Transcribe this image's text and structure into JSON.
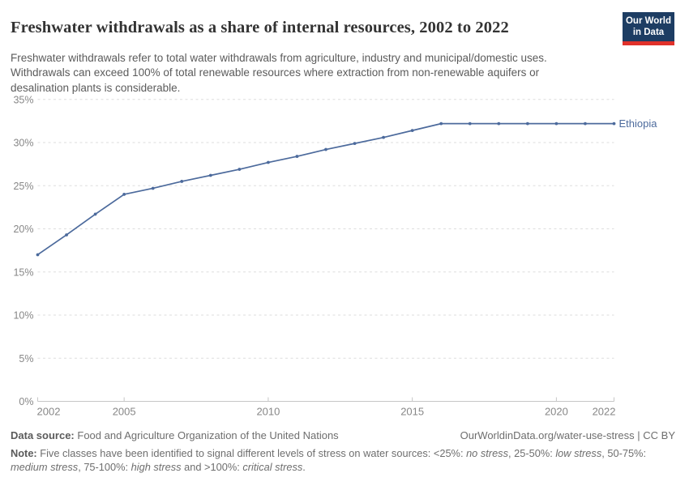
{
  "header": {
    "title": "Freshwater withdrawals as a share of internal resources, 2002 to 2022",
    "subtitle_lines": [
      "Freshwater withdrawals refer to total water withdrawals from agriculture, industry and municipal/domestic uses.",
      "Withdrawals can exceed 100% of total renewable resources where extraction from non-renewable aquifers or",
      "desalination plants is considerable."
    ],
    "logo": {
      "line1": "Our World",
      "line2": "in Data",
      "bg_color": "#1d3d63",
      "accent_color": "#e0312a"
    }
  },
  "chart_data": {
    "type": "line",
    "title": "Freshwater withdrawals as a share of internal resources, 2002 to 2022",
    "x": [
      2002,
      2003,
      2004,
      2005,
      2006,
      2007,
      2008,
      2009,
      2010,
      2011,
      2012,
      2013,
      2014,
      2015,
      2016,
      2017,
      2018,
      2019,
      2020,
      2021,
      2022
    ],
    "series": [
      {
        "name": "Ethiopia",
        "color": "#4C6A9C",
        "values": [
          17.0,
          19.3,
          21.7,
          24.0,
          24.7,
          25.5,
          26.2,
          26.9,
          27.7,
          28.4,
          29.2,
          29.9,
          30.6,
          31.4,
          32.2,
          32.2,
          32.2,
          32.2,
          32.2,
          32.2,
          32.2
        ]
      }
    ],
    "xlabel": "",
    "ylabel": "",
    "xlim": [
      2002,
      2022
    ],
    "ylim": [
      0,
      35
    ],
    "x_ticks": [
      2002,
      2005,
      2010,
      2015,
      2020,
      2022
    ],
    "y_ticks": [
      0,
      5,
      10,
      15,
      20,
      25,
      30,
      35
    ],
    "y_suffix": "%",
    "grid": "horizontal-dashed",
    "legend": "end-of-line-label",
    "colors": {
      "grid": "#dedede",
      "axis": "#c6c6c6",
      "tick_label": "#878787"
    }
  },
  "footer": {
    "source_label": "Data source:",
    "source_value": "Food and Agriculture Organization of the United Nations",
    "link": "OurWorldinData.org/water-use-stress | CC BY",
    "note_segments": [
      {
        "t": "Note: ",
        "b": 1
      },
      {
        "t": "Five classes have been identified to signal different levels of stress on water sources: <25%: "
      },
      {
        "t": "no stress",
        "i": 1
      },
      {
        "t": ", 25-50%: "
      },
      {
        "t": "low stress",
        "i": 1
      },
      {
        "t": ", 50-75%:"
      },
      {
        "br": 1
      },
      {
        "t": "medium stress",
        "i": 1
      },
      {
        "t": ", 75-100%: "
      },
      {
        "t": "high stress",
        "i": 1
      },
      {
        "t": " and >100%: "
      },
      {
        "t": "critical stress",
        "i": 1
      },
      {
        "t": "."
      }
    ]
  }
}
